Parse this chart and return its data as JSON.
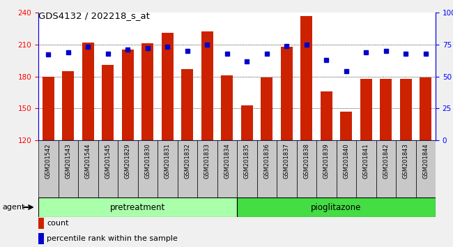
{
  "title": "GDS4132 / 202218_s_at",
  "categories": [
    "GSM201542",
    "GSM201543",
    "GSM201544",
    "GSM201545",
    "GSM201829",
    "GSM201830",
    "GSM201831",
    "GSM201832",
    "GSM201833",
    "GSM201834",
    "GSM201835",
    "GSM201836",
    "GSM201837",
    "GSM201838",
    "GSM201839",
    "GSM201840",
    "GSM201841",
    "GSM201842",
    "GSM201843",
    "GSM201844"
  ],
  "bar_values": [
    180,
    185,
    212,
    191,
    205,
    211,
    221,
    187,
    222,
    181,
    153,
    179,
    208,
    237,
    166,
    147,
    178,
    178,
    178,
    179
  ],
  "dot_values": [
    67,
    69,
    73,
    68,
    71,
    72,
    73,
    70,
    75,
    68,
    62,
    68,
    74,
    75,
    63,
    54,
    69,
    70,
    68,
    68
  ],
  "ylim_left": [
    120,
    240
  ],
  "ylim_right": [
    0,
    100
  ],
  "yticks_left": [
    120,
    150,
    180,
    210,
    240
  ],
  "yticks_right": [
    0,
    25,
    50,
    75,
    100
  ],
  "ytick_labels_right": [
    "0",
    "25",
    "50",
    "75",
    "100%"
  ],
  "bar_color": "#cc2200",
  "dot_color": "#0000cc",
  "pretreatment_label": "pretreatment",
  "pioglitazone_label": "pioglitazone",
  "agent_label": "agent",
  "legend_count": "count",
  "legend_percentile": "percentile rank within the sample",
  "n_pretreatment": 10,
  "n_pioglitazone": 10,
  "bg_xtick": "#c8c8c8",
  "bg_agent_pre": "#aaffaa",
  "bg_agent_pio": "#44dd44",
  "fig_bg": "#f0f0f0"
}
